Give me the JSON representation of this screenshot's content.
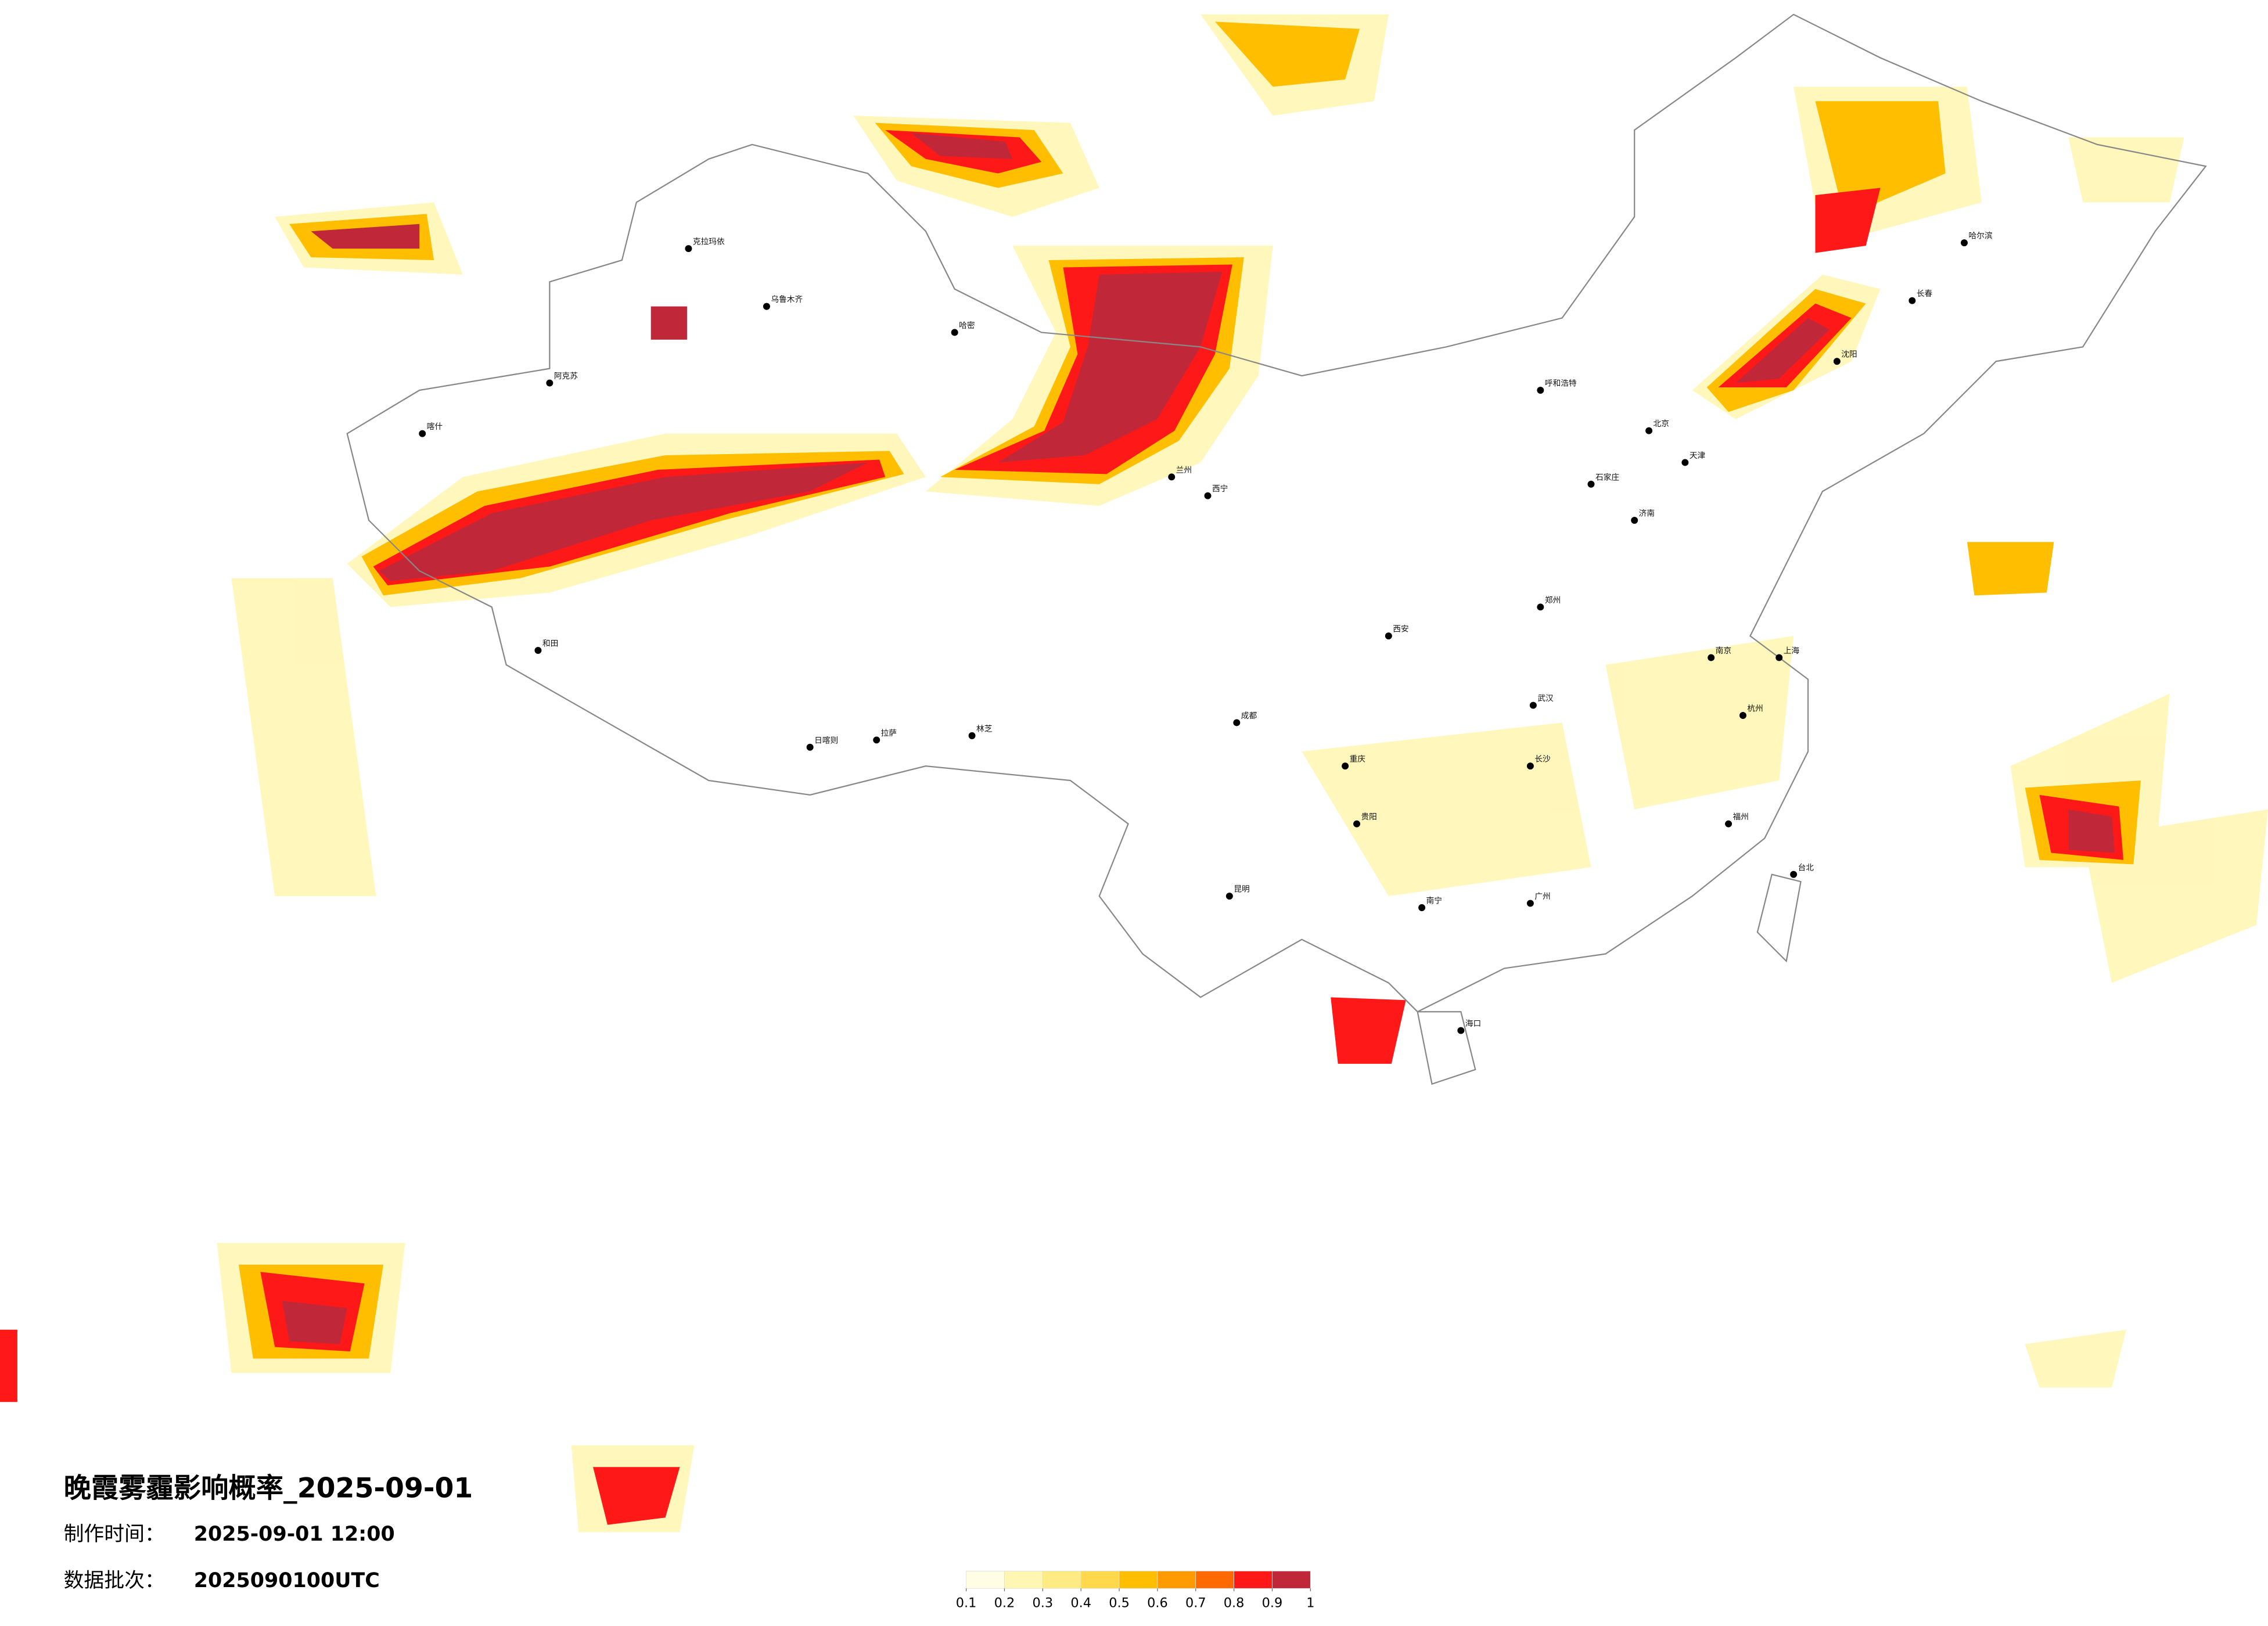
{
  "title": "晚霞雾霾影响概率_2025-09-01",
  "made_time": {
    "label": "制作时间：",
    "value": "2025-09-01 12:00"
  },
  "batch": {
    "label": "数据批次：",
    "value": "2025090100UTC"
  },
  "legend": {
    "ticks": [
      0.1,
      0.2,
      0.3,
      0.4,
      0.5,
      0.6,
      0.7,
      0.8,
      0.9,
      1
    ],
    "colors": [
      "#fffde3",
      "#fff6b4",
      "#ffeb84",
      "#ffd84c",
      "#ffbf00",
      "#ff9b00",
      "#ff6a00",
      "#ff1818",
      "#c0283a"
    ]
  },
  "cities": [
    "克拉玛依",
    "乌鲁木齐",
    "哈密",
    "阿克苏",
    "喀什",
    "和田",
    "日喀则",
    "拉萨",
    "林芝",
    "西宁",
    "兰州",
    "呼和浩特",
    "北京",
    "天津",
    "石家庄",
    "济南",
    "郑州",
    "西安",
    "成都",
    "重庆",
    "武汉",
    "长沙",
    "南京",
    "上海",
    "杭州",
    "福州",
    "广州",
    "南宁",
    "昆明",
    "贵阳",
    "哈尔滨",
    "长春",
    "沈阳",
    "海口",
    "台北"
  ]
}
